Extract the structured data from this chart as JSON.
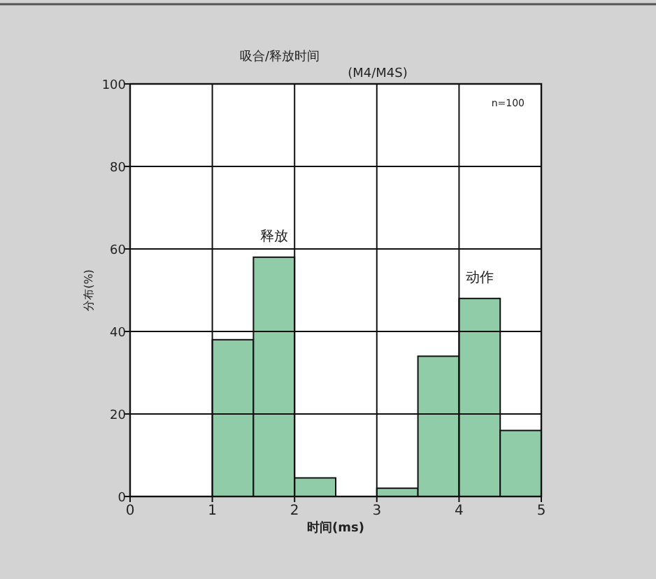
{
  "chart_data": {
    "type": "histogram",
    "title": "吸合/释放时间",
    "subtitle": "(M4/M4S)",
    "xlabel": "时间(ms)",
    "ylabel": "分布(%)",
    "bins": [
      0,
      0.5,
      1,
      1.5,
      2,
      2.5,
      3,
      3.5,
      4,
      4.5,
      5
    ],
    "values": [
      0,
      0,
      38,
      58,
      4.5,
      0,
      2,
      34,
      48,
      16
    ],
    "color": "#90cca8",
    "xlim": [
      0,
      5
    ],
    "xticks": [
      0,
      1,
      2,
      3,
      4,
      5
    ],
    "ylim": [
      0,
      100
    ],
    "yticks": [
      0,
      20,
      40,
      60,
      80,
      100
    ],
    "grid": true,
    "annotations": [
      "n=100",
      {
        "text": "释放",
        "x": 1.75,
        "y": 58
      },
      {
        "text": "动作",
        "x": 4.25,
        "y": 48
      }
    ]
  }
}
